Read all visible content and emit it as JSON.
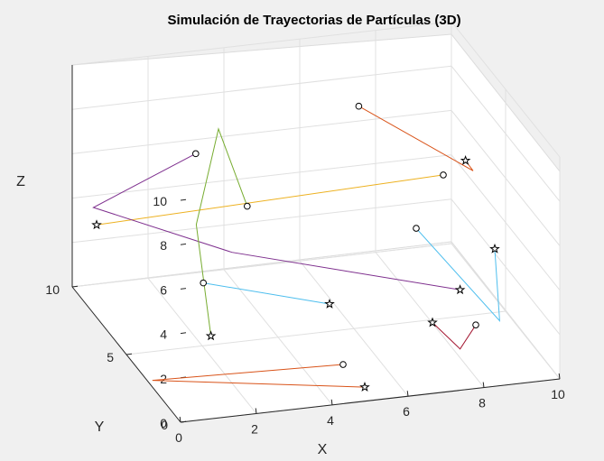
{
  "chart_data": {
    "type": "line3d",
    "title": "Simulación de Trayectorias de Partículas (3D)",
    "xlabel": "X",
    "ylabel": "Y",
    "zlabel": "Z",
    "xlim": [
      0,
      10
    ],
    "ylim": [
      0,
      10
    ],
    "zlim": [
      0,
      10
    ],
    "xticks": [
      "0",
      "2",
      "4",
      "6",
      "8",
      "10"
    ],
    "yticks": [
      "0",
      "5",
      "10"
    ],
    "zticks": [
      "0",
      "2",
      "4",
      "6",
      "8",
      "10"
    ],
    "grid": true,
    "view": "3d-perspective",
    "start_marker": "circle",
    "end_marker": "star",
    "series": [
      {
        "color": "#D95319",
        "points": [
          [
            5.0,
            2.5,
            0.1
          ],
          [
            0.0,
            2.6,
            0.3
          ],
          [
            5.0,
            0.5,
            0.3
          ]
        ]
      },
      {
        "color": "#EDB120",
        "points": [
          [
            9.5,
            9.0,
            3.8
          ],
          [
            0.5,
            9.5,
            3.0
          ]
        ]
      },
      {
        "color": "#7E2F8E",
        "points": [
          [
            3.2,
            9.8,
            5.5
          ],
          [
            0.5,
            9.8,
            3.6
          ],
          [
            3.5,
            7.5,
            2.4
          ],
          [
            8.8,
            5.0,
            1.2
          ]
        ]
      },
      {
        "color": "#77AC30",
        "points": [
          [
            4.5,
            9.6,
            3.0
          ],
          [
            3.8,
            9.8,
            6.5
          ],
          [
            2.7,
            8.0,
            3.5
          ],
          [
            1.8,
            3.5,
            1.4
          ]
        ]
      },
      {
        "color": "#4DBEEE",
        "points": [
          [
            2.6,
            7.0,
            1.5
          ],
          [
            5.5,
            5.5,
            0.9
          ]
        ]
      },
      {
        "color": "#A2142F",
        "points": [
          [
            8.5,
            2.5,
            1.2
          ],
          [
            8.0,
            2.2,
            0.4
          ],
          [
            7.5,
            3.0,
            1.2
          ]
        ]
      },
      {
        "color": "#D95319",
        "points": [
          [
            7.5,
            9.8,
            6.8
          ],
          [
            10.0,
            8.0,
            4.5
          ],
          [
            9.8,
            8.0,
            5.0
          ]
        ]
      },
      {
        "color": "#4DBEEE",
        "points": [
          [
            8.5,
            8.0,
            2.2
          ],
          [
            9.5,
            3.8,
            0.4
          ],
          [
            10.0,
            6.0,
            2.2
          ]
        ]
      }
    ]
  }
}
